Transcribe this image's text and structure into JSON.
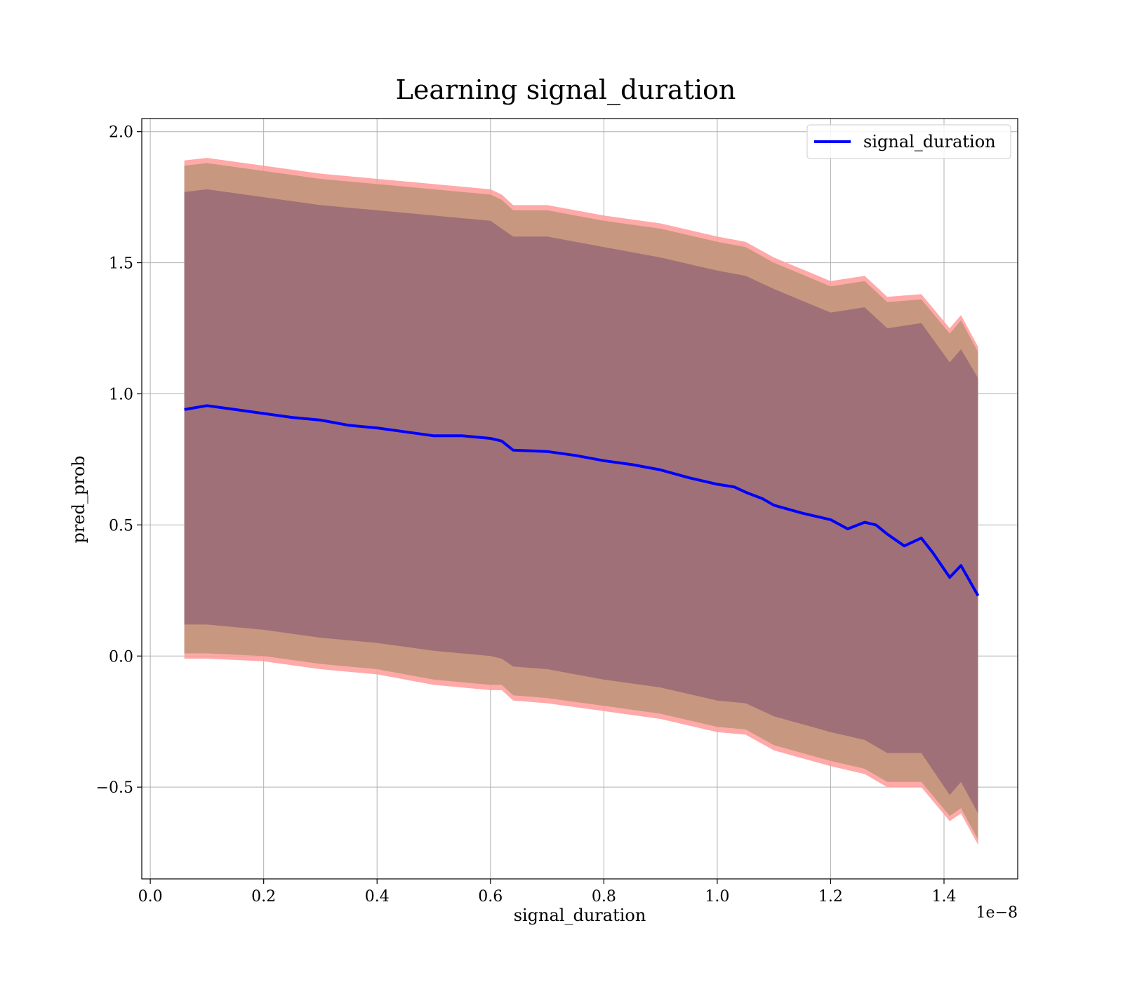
{
  "chart_data": {
    "type": "line",
    "title": "Learning signal_duration",
    "xlabel": "signal_duration",
    "ylabel": "pred_prob",
    "x_offset_text": "1e−8",
    "xlim": [
      -0.015,
      1.53
    ],
    "ylim": [
      -0.85,
      2.05
    ],
    "x_ticks": [
      0.0,
      0.2,
      0.4,
      0.6,
      0.8,
      1.0,
      1.2,
      1.4
    ],
    "x_tick_labels": [
      "0.0",
      "0.2",
      "0.4",
      "0.6",
      "0.8",
      "1.0",
      "1.2",
      "1.4"
    ],
    "y_ticks": [
      -0.5,
      0.0,
      0.5,
      1.0,
      1.5,
      2.0
    ],
    "y_tick_labels": [
      "−0.5",
      "0.0",
      "0.5",
      "1.0",
      "1.5",
      "2.0"
    ],
    "grid": true,
    "legend_position": "top-right",
    "colors": {
      "line": "#0000ff",
      "outer_band": "#ff9a9a",
      "middle_band": "#c8977f",
      "inner_band": "#a07078"
    },
    "series": [
      {
        "name": "signal_duration",
        "x": [
          0.06,
          0.1,
          0.15,
          0.2,
          0.25,
          0.3,
          0.35,
          0.4,
          0.45,
          0.5,
          0.55,
          0.6,
          0.62,
          0.64,
          0.7,
          0.75,
          0.8,
          0.85,
          0.9,
          0.95,
          1.0,
          1.03,
          1.05,
          1.08,
          1.1,
          1.15,
          1.2,
          1.23,
          1.26,
          1.28,
          1.3,
          1.33,
          1.36,
          1.38,
          1.41,
          1.43,
          1.46
        ],
        "y": [
          0.94,
          0.955,
          0.94,
          0.925,
          0.91,
          0.9,
          0.88,
          0.87,
          0.855,
          0.84,
          0.84,
          0.83,
          0.82,
          0.785,
          0.78,
          0.765,
          0.745,
          0.73,
          0.71,
          0.68,
          0.655,
          0.645,
          0.625,
          0.6,
          0.575,
          0.545,
          0.52,
          0.485,
          0.51,
          0.5,
          0.465,
          0.42,
          0.45,
          0.395,
          0.3,
          0.345,
          0.23
        ]
      }
    ],
    "bands": [
      {
        "x": [
          0.06,
          0.1,
          0.2,
          0.3,
          0.4,
          0.5,
          0.6,
          0.62,
          0.64,
          0.7,
          0.8,
          0.9,
          1.0,
          1.05,
          1.1,
          1.2,
          1.26,
          1.3,
          1.36,
          1.41,
          1.43,
          1.46
        ],
        "upper": [
          1.89,
          1.9,
          1.87,
          1.84,
          1.82,
          1.8,
          1.78,
          1.76,
          1.72,
          1.72,
          1.68,
          1.65,
          1.6,
          1.58,
          1.52,
          1.43,
          1.45,
          1.37,
          1.38,
          1.25,
          1.3,
          1.18
        ],
        "lower": [
          -0.01,
          -0.01,
          -0.02,
          -0.05,
          -0.07,
          -0.11,
          -0.13,
          -0.13,
          -0.17,
          -0.18,
          -0.21,
          -0.24,
          -0.29,
          -0.3,
          -0.36,
          -0.42,
          -0.45,
          -0.5,
          -0.5,
          -0.63,
          -0.6,
          -0.72
        ]
      },
      {
        "x": [
          0.06,
          0.1,
          0.2,
          0.3,
          0.4,
          0.5,
          0.6,
          0.62,
          0.64,
          0.7,
          0.8,
          0.9,
          1.0,
          1.05,
          1.1,
          1.2,
          1.26,
          1.3,
          1.36,
          1.41,
          1.43,
          1.46
        ],
        "upper": [
          1.87,
          1.88,
          1.85,
          1.82,
          1.8,
          1.78,
          1.76,
          1.74,
          1.7,
          1.7,
          1.66,
          1.63,
          1.58,
          1.56,
          1.5,
          1.41,
          1.43,
          1.35,
          1.36,
          1.23,
          1.28,
          1.16
        ],
        "lower": [
          0.01,
          0.01,
          0.0,
          -0.03,
          -0.05,
          -0.09,
          -0.11,
          -0.11,
          -0.15,
          -0.16,
          -0.19,
          -0.22,
          -0.27,
          -0.28,
          -0.34,
          -0.4,
          -0.43,
          -0.48,
          -0.48,
          -0.61,
          -0.58,
          -0.7
        ]
      },
      {
        "x": [
          0.06,
          0.1,
          0.2,
          0.3,
          0.4,
          0.5,
          0.6,
          0.62,
          0.64,
          0.7,
          0.8,
          0.9,
          1.0,
          1.05,
          1.1,
          1.2,
          1.26,
          1.3,
          1.36,
          1.41,
          1.43,
          1.46
        ],
        "upper": [
          1.77,
          1.78,
          1.75,
          1.72,
          1.7,
          1.68,
          1.66,
          1.63,
          1.6,
          1.6,
          1.56,
          1.52,
          1.47,
          1.45,
          1.4,
          1.31,
          1.33,
          1.25,
          1.27,
          1.12,
          1.17,
          1.06
        ],
        "lower": [
          0.12,
          0.12,
          0.1,
          0.07,
          0.05,
          0.02,
          0.0,
          -0.01,
          -0.04,
          -0.05,
          -0.09,
          -0.12,
          -0.17,
          -0.18,
          -0.23,
          -0.29,
          -0.32,
          -0.37,
          -0.37,
          -0.53,
          -0.48,
          -0.6
        ]
      }
    ]
  }
}
